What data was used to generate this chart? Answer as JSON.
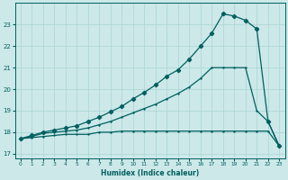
{
  "xlabel": "Humidex (Indice chaleur)",
  "bg_color": "#cce8e8",
  "line_color": "#005f5f",
  "grid_color": "#aad4d4",
  "xlim": [
    -0.5,
    23.5
  ],
  "ylim": [
    16.8,
    24.0
  ],
  "xticks": [
    0,
    1,
    2,
    3,
    4,
    5,
    6,
    7,
    8,
    9,
    10,
    11,
    12,
    13,
    14,
    15,
    16,
    17,
    18,
    19,
    20,
    21,
    22,
    23
  ],
  "yticks": [
    17,
    18,
    19,
    20,
    21,
    22,
    23
  ],
  "line1_x": [
    0,
    1,
    2,
    3,
    4,
    5,
    6,
    7,
    8,
    9,
    10,
    11,
    12,
    13,
    14,
    15,
    16,
    17,
    18,
    19,
    20,
    21,
    22,
    23
  ],
  "line1_y": [
    17.7,
    17.75,
    17.8,
    17.85,
    17.9,
    17.9,
    17.9,
    18.0,
    18.0,
    18.05,
    18.05,
    18.05,
    18.05,
    18.05,
    18.05,
    18.05,
    18.05,
    18.05,
    18.05,
    18.05,
    18.05,
    18.05,
    18.05,
    17.35
  ],
  "line2_x": [
    0,
    1,
    2,
    3,
    4,
    5,
    6,
    7,
    8,
    9,
    10,
    11,
    12,
    13,
    14,
    15,
    16,
    17,
    18,
    19,
    20,
    21,
    22,
    23
  ],
  "line2_y": [
    17.7,
    17.8,
    17.95,
    18.0,
    18.05,
    18.1,
    18.2,
    18.35,
    18.5,
    18.7,
    18.9,
    19.1,
    19.3,
    19.55,
    19.8,
    20.1,
    20.5,
    21.0,
    21.0,
    21.0,
    21.0,
    19.0,
    18.5,
    17.35
  ],
  "line3_x": [
    0,
    1,
    2,
    3,
    4,
    5,
    6,
    7,
    8,
    9,
    10,
    11,
    12,
    13,
    14,
    15,
    16,
    17,
    18,
    19,
    20,
    21,
    22,
    23
  ],
  "line3_y": [
    17.7,
    17.85,
    18.0,
    18.1,
    18.2,
    18.3,
    18.5,
    18.7,
    18.95,
    19.2,
    19.55,
    19.85,
    20.2,
    20.6,
    20.9,
    21.4,
    22.0,
    22.6,
    23.5,
    23.4,
    23.2,
    22.8,
    18.5,
    17.35
  ]
}
